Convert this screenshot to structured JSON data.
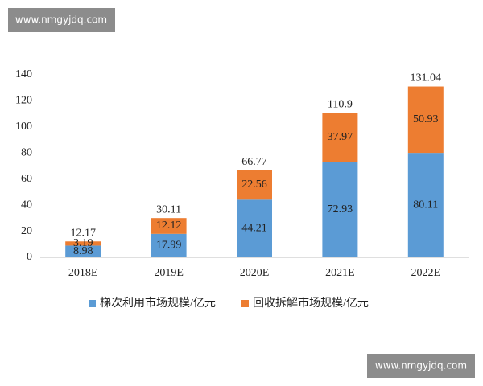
{
  "chart_data": {
    "type": "stacked_bar",
    "categories": [
      "2018E",
      "2019E",
      "2020E",
      "2021E",
      "2022E"
    ],
    "series": [
      {
        "name": "梯次利用市场规模/亿元",
        "color": "#5b9bd5",
        "values": [
          8.98,
          17.99,
          44.21,
          72.93,
          80.11
        ]
      },
      {
        "name": "回收拆解市场规模/亿元",
        "color": "#ed7d31",
        "values": [
          3.19,
          12.12,
          22.56,
          37.97,
          50.93
        ]
      }
    ],
    "totals": [
      12.17,
      30.11,
      66.77,
      110.9,
      131.04
    ],
    "ylim": [
      0,
      140
    ],
    "yticks": [
      0,
      20,
      40,
      60,
      80,
      100,
      120,
      140
    ],
    "grid": false
  },
  "watermarks": [
    "www.nmgyjdq.com",
    "www.nmgyjdq.com"
  ]
}
